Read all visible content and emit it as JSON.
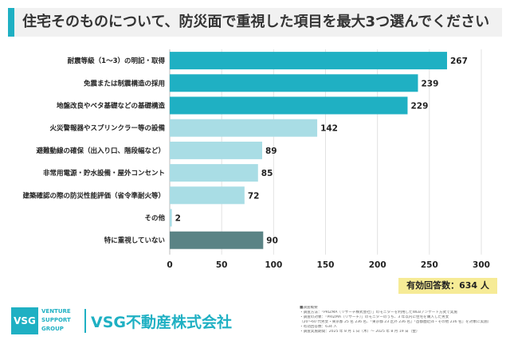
{
  "title": "住宅そのものについて、防災面で重視した項目を最大3つ選んでください",
  "total_respondents": "有効回答数：634 人",
  "company": {
    "logo_text": "VSG",
    "logo_sub": [
      "VENTURE",
      "SUPPORT",
      "GROUP"
    ],
    "name": "VSG不動産株式会社"
  },
  "survey_notes": [
    "■調査概要",
    "・調査方法：「PRIZMA（リサーチ株式会社）」のモニターを利用したWEBアンケート方式で実施",
    "・調査の対象：「PRIZMA（リサーチ）」のモニターのうち、3 年以内に住宅を購入した男女",
    "（20～60 代男女・東京都 25 名 236 名、「東京都 23 区外 236 名」「首都圏近郊・その他 236 名」を対象に実施）",
    "・有効回答数：634 人",
    "・調査実施期間：2025 年 8 月 1 日（木）～ 2025 年 8 月 19 日（金）"
  ],
  "colors": {
    "accent": "#1fb0c3",
    "light": "#a9dde5",
    "gray": "#5a8385",
    "tiny": "#cdeaee"
  },
  "chart_data": {
    "type": "bar",
    "orientation": "horizontal",
    "categories": [
      "耐震等級（1～3）の明記・取得",
      "免震または制震構造の採用",
      "地盤改良やベタ基礎などの基礎構造",
      "火災警報器やスプリンクラー等の設備",
      "避難動線の確保（出入り口、階段幅など）",
      "非常用電源・貯水設備・屋外コンセント",
      "建築確認の際の防災性能評価（省令準耐火等）",
      "その他",
      "特に重視していない"
    ],
    "values": [
      267,
      239,
      229,
      142,
      89,
      85,
      72,
      2,
      90
    ],
    "bar_colors": [
      "#1fb0c3",
      "#1fb0c3",
      "#1fb0c3",
      "#a9dde5",
      "#a9dde5",
      "#a9dde5",
      "#a9dde5",
      "#a9dde5",
      "#5a8385"
    ],
    "xlim": [
      0,
      300
    ],
    "xticks": [
      0,
      50,
      100,
      150,
      200,
      250,
      300
    ],
    "grid": true
  }
}
